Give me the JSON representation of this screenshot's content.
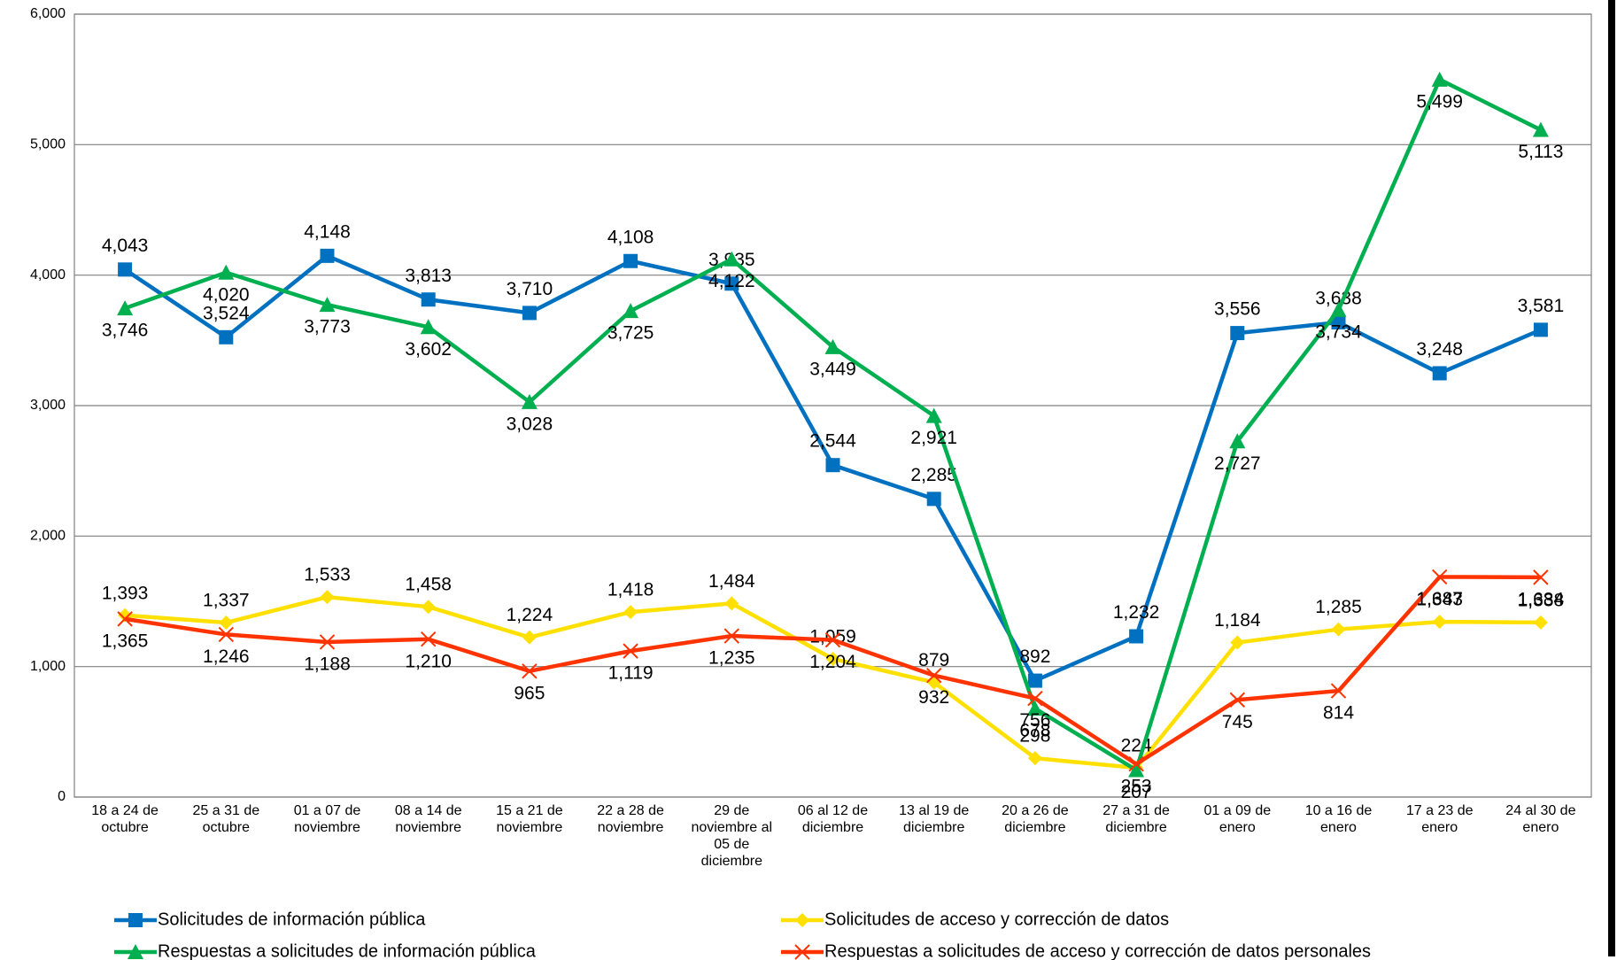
{
  "chart_data": {
    "type": "line",
    "categories": [
      "18 a 24 de octubre",
      "25 a 31 de octubre",
      "01 a 07 de noviembre",
      "08 a 14 de noviembre",
      "15 a 21 de noviembre",
      "22 a 28 de noviembre",
      "29 de noviembre al 05 de diciembre",
      "06 al 12 de diciembre",
      "13 al 19 de diciembre",
      "20 a 26 de diciembre",
      "27 a 31 de diciembre",
      "01 a 09 de enero",
      "10 a 16 de enero",
      "17 a 23 de enero",
      "24 al 30 de enero"
    ],
    "ylim": [
      0,
      6000
    ],
    "yticks": [
      0,
      {
        "value": 1000,
        "label": "1,000"
      },
      {
        "value": 2000,
        "label": "2,000"
      },
      {
        "value": 3000,
        "label": "3,000"
      },
      {
        "value": 4000,
        "label": "4,000"
      },
      {
        "value": 5000,
        "label": "5,000"
      },
      {
        "value": 6000,
        "label": "6,000"
      }
    ],
    "grid": true,
    "series": [
      {
        "name": "Solicitudes de información pública",
        "color": "#0070c0",
        "marker": "square",
        "values": [
          4043,
          3524,
          4148,
          3813,
          3710,
          4108,
          3935,
          2544,
          2285,
          892,
          1232,
          3556,
          3638,
          3248,
          3581
        ],
        "value_labels": [
          "4,043",
          "3,524",
          "4,148",
          "3,813",
          "3,710",
          "4,108",
          "3,935",
          "2,544",
          "2,285",
          "892",
          "1,232",
          "3,556",
          "3,638",
          "3,248",
          "3,581"
        ]
      },
      {
        "name": "Solicitudes de acceso y corrección de datos",
        "color": "#ffe000",
        "marker": "diamond",
        "values": [
          1393,
          1337,
          1533,
          1458,
          1224,
          1418,
          1484,
          1059,
          879,
          298,
          224,
          1184,
          1285,
          1343,
          1338
        ],
        "value_labels": [
          "1,393",
          "1,337",
          "1,533",
          "1,458",
          "1,224",
          "1,418",
          "1,484",
          "1,059",
          "879",
          "298",
          "224",
          "1,184",
          "1,285",
          "1,343",
          "1,338"
        ]
      },
      {
        "name": "Respuestas a solicitudes de información pública",
        "color": "#00b050",
        "marker": "triangle",
        "values": [
          3746,
          4020,
          3773,
          3602,
          3028,
          3725,
          4122,
          3449,
          2921,
          678,
          207,
          2727,
          3734,
          5499,
          5113
        ],
        "value_labels": [
          "3,746",
          "4,020",
          "3,773",
          "3,602",
          "3,028",
          "3,725",
          "4,122",
          "3,449",
          "2,921",
          "678",
          "207",
          "2,727",
          "3,734",
          "5,499",
          "5,113"
        ]
      },
      {
        "name": "Respuestas a solicitudes de acceso y corrección de datos personales",
        "color": "#ff3300",
        "marker": "x",
        "values": [
          1365,
          1246,
          1188,
          1210,
          965,
          1119,
          1235,
          1204,
          932,
          756,
          253,
          745,
          814,
          1687,
          1684
        ],
        "value_labels": [
          "1,365",
          "1,246",
          "1,188",
          "1,210",
          "965",
          "1,119",
          "1,235",
          "1,204",
          "932",
          "756",
          "253",
          "745",
          "814",
          "1,687",
          "1,684"
        ]
      }
    ]
  }
}
